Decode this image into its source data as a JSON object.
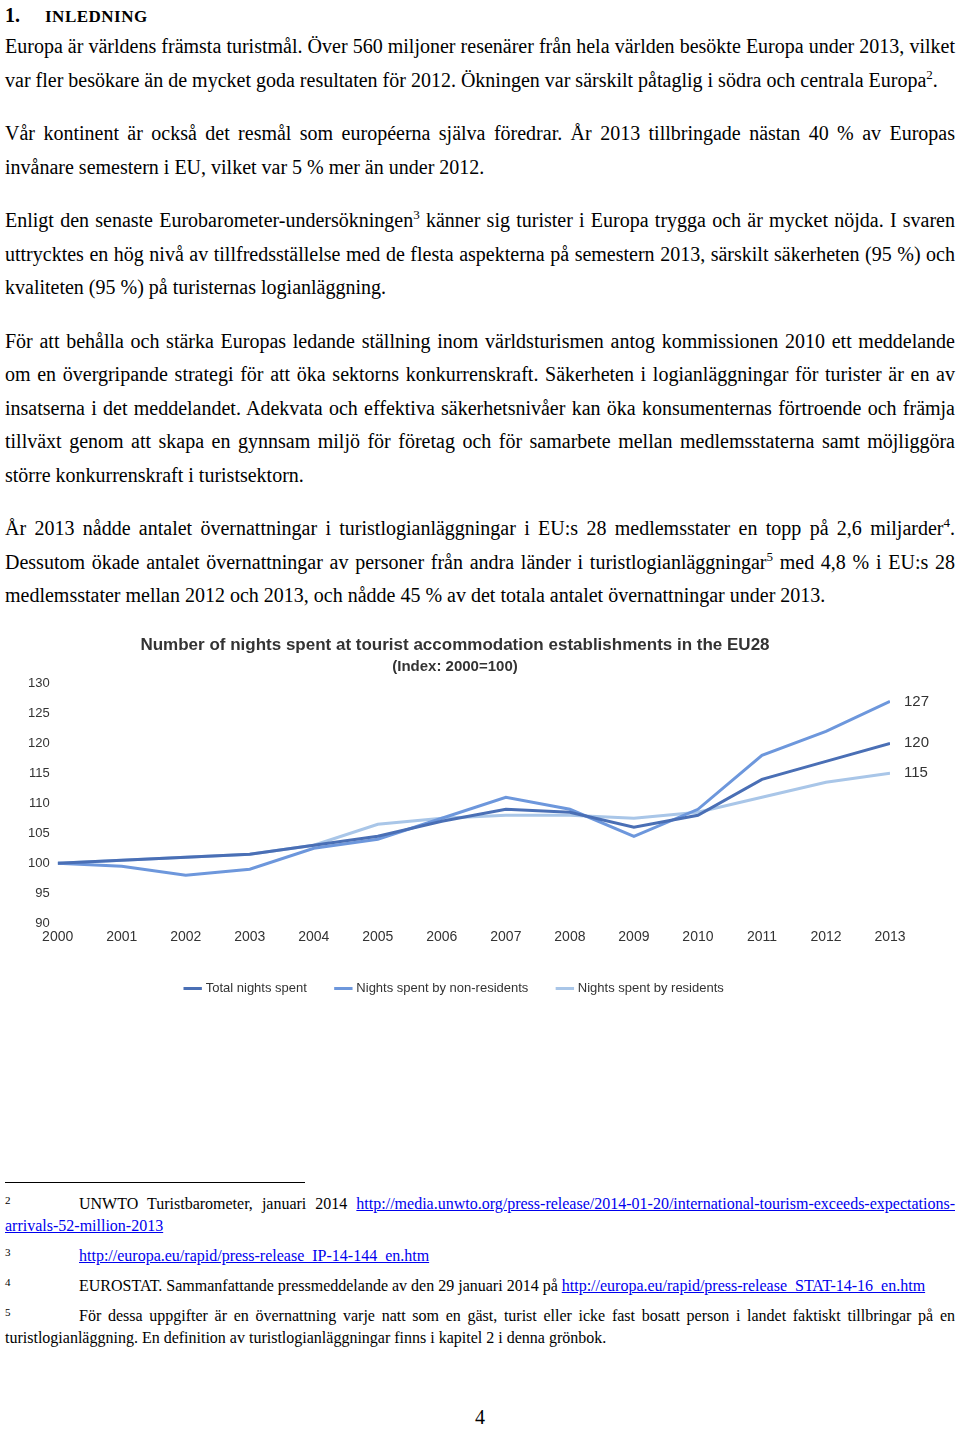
{
  "heading": {
    "number": "1.",
    "title": "INLEDNING"
  },
  "paragraphs": [
    [
      "Europa är världens främsta turistmål. Över 560 miljoner resenärer från hela världen besökte Europa under 2013, vilket var fler besökare än de mycket goda resultaten för 2012. Ökningen var särskilt påtaglig i södra och centrala Europa",
      {
        "sup": "2"
      },
      "."
    ],
    [
      "Vår kontinent är också det resmål som européerna själva föredrar. År 2013 tillbringade nästan 40 % av Europas invånare semestern i EU, vilket var 5 % mer än under 2012."
    ],
    [
      "Enligt den senaste Eurobarometer-undersökningen",
      {
        "sup": "3"
      },
      " känner sig turister i Europa trygga och är mycket nöjda. I svaren uttrycktes en hög nivå av tillfredsställelse med de flesta aspekterna på semestern 2013, särskilt säkerheten (95 %) och kvaliteten (95 %) på turisternas logianläggning."
    ],
    [
      "För att behålla och stärka Europas ledande ställning inom världsturismen antog kommissionen 2010 ett meddelande om en övergripande strategi för att öka sektorns konkurrenskraft. Säkerheten i logianläggningar för turister är en av insatserna i det meddelandet. Adekvata och effektiva säkerhetsnivåer kan öka konsumenternas förtroende och främja tillväxt genom att skapa en gynnsam miljö för företag och för samarbete mellan medlemsstaterna samt möjliggöra större konkurrenskraft i turistsektorn."
    ],
    [
      "År 2013 nådde antalet övernattningar i turistlogianläggningar i EU:s 28 medlemsstater en topp på 2,6 miljarder",
      {
        "sup": "4"
      },
      ". Dessutom ökade antalet övernattningar av personer från andra länder i turistlogianläggningar",
      {
        "sup": "5"
      },
      " med 4,8 % i EU:s 28 medlemsstater mellan 2012 och 2013, och nådde 45 % av det totala antalet övernattningar under 2013."
    ]
  ],
  "chart_data": {
    "type": "line",
    "title": "Number of nights spent at tourist accommodation establishments in the EU28",
    "subtitle": "(Index: 2000=100)",
    "categories": [
      "2000",
      "2001",
      "2002",
      "2003",
      "2004",
      "2005",
      "2006",
      "2007",
      "2008",
      "2009",
      "2010",
      "2011",
      "2012",
      "2013"
    ],
    "series": [
      {
        "name": "Total nights spent",
        "color": "#4a6fb5",
        "values": [
          100,
          100.5,
          101,
          101.5,
          103,
          104.5,
          107,
          109,
          108.5,
          106,
          108,
          114,
          117,
          120
        ]
      },
      {
        "name": "Nights spent by non-residents",
        "color": "#6d97dc",
        "values": [
          100,
          99.5,
          98,
          99,
          102.5,
          104,
          107.5,
          111,
          109,
          104.5,
          109,
          118,
          122,
          127
        ]
      },
      {
        "name": "Nights spent by residents",
        "color": "#a9c6e8",
        "values": [
          100,
          100.5,
          101,
          101.5,
          103,
          106.5,
          107.5,
          108,
          108,
          107.5,
          108.5,
          111,
          113.5,
          115
        ]
      }
    ],
    "ylim": [
      90,
      130
    ],
    "yticks": [
      90,
      95,
      100,
      105,
      110,
      115,
      120,
      125,
      130
    ],
    "grid": false,
    "legend": "bottom",
    "annotations": [
      {
        "series": "Nights spent by non-residents",
        "x": "2013",
        "text": "127"
      },
      {
        "series": "Total nights spent",
        "x": "2013",
        "text": "120"
      },
      {
        "series": "Nights spent by residents",
        "x": "2013",
        "text": "115"
      }
    ]
  },
  "footnotes": [
    {
      "mark": "2",
      "segments": [
        "UNWTO Turistbarometer, januari 2014 ",
        {
          "link": "http://media.unwto.org/press-release/2014-01-20/international-tourism-exceeds-expectations-arrivals-52-million-2013"
        }
      ]
    },
    {
      "mark": "3",
      "segments": [
        {
          "link": "http://europa.eu/rapid/press-release_IP-14-144_en.htm"
        }
      ]
    },
    {
      "mark": "4",
      "segments": [
        "EUROSTAT. Sammanfattande pressmeddelande av den 29 januari 2014 på ",
        {
          "link": "http://europa.eu/rapid/press-release_STAT-14-16_en.htm"
        }
      ]
    },
    {
      "mark": "5",
      "segments": [
        "För dessa uppgifter är en övernattning varje natt som en gäst, turist eller icke fast bosatt person i landet faktiskt tillbringar på en turistlogianläggning. En definition av turistlogianläggningar finns i kapitel 2 i denna grönbok."
      ]
    }
  ],
  "page_number": "4"
}
